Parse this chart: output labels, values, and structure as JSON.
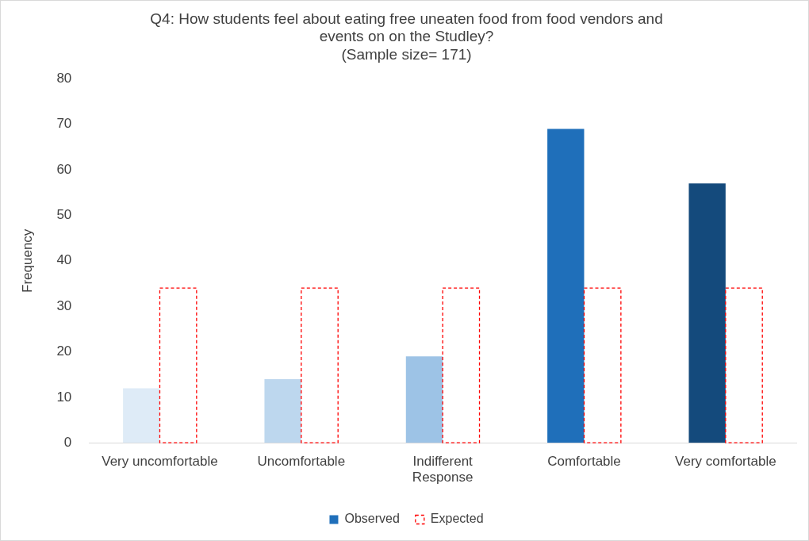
{
  "chart_data": {
    "type": "bar",
    "title": "Q4: How students feel about eating free uneaten food from food vendors and events on on the Studley?",
    "subtitle": "(Sample size= 171)",
    "ylabel": "Frequency",
    "categories": [
      "Very uncomfortable",
      "Uncomfortable",
      "Indifferent\nResponse",
      "Comfortable",
      "Very comfortable"
    ],
    "series": [
      {
        "name": "Observed",
        "color": "#1f6fba",
        "colors": [
          "#deebf7",
          "#bdd7ee",
          "#9dc3e6",
          "#1f6fba",
          "#144a7c"
        ],
        "values": [
          12,
          14,
          19,
          69,
          57
        ]
      },
      {
        "name": "Expected",
        "color": "#ff0000",
        "line_style": "dashed",
        "values": [
          34,
          34,
          34,
          34,
          34
        ]
      }
    ],
    "ylim": [
      0,
      80
    ],
    "yticks": [
      0,
      10,
      20,
      30,
      40,
      50,
      60,
      70,
      80
    ],
    "grid": false,
    "legend": "bottom"
  }
}
